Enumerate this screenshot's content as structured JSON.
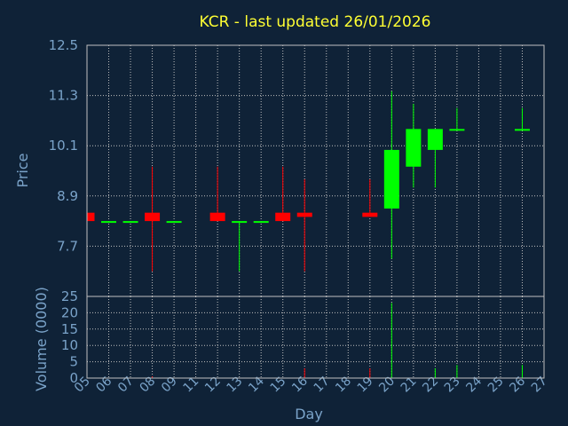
{
  "chart_data": {
    "type": "candlestick",
    "title": "KCR - last updated 26/01/2026",
    "xlabel": "Day",
    "price_ylabel": "Price",
    "volume_ylabel": "Volume (0000)",
    "price_ticks": [
      "12.5",
      "11.3",
      "10.1",
      "8.9",
      "7.7"
    ],
    "price_ylim": [
      6.5,
      12.5
    ],
    "volume_ticks": [
      "25",
      "20",
      "15",
      "10",
      "5",
      "0"
    ],
    "volume_ylim": [
      0,
      25
    ],
    "grid": true,
    "x_labels": [
      "05",
      "06",
      "07",
      "08",
      "09",
      "11",
      "12",
      "13",
      "14",
      "15",
      "16",
      "17",
      "18",
      "19",
      "20",
      "21",
      "22",
      "23",
      "24",
      "25",
      "26",
      "27"
    ],
    "colors": {
      "up": "#00ff00",
      "down": "#ff0000",
      "background": "#0f2237",
      "grid": "#c0c0c0",
      "axis_text": "#7aa3c9",
      "title": "#ffff33"
    },
    "candles": [
      {
        "day": "05",
        "open": 8.5,
        "high": 8.5,
        "low": 8.3,
        "close": 8.3
      },
      {
        "day": "06",
        "open": 8.3,
        "high": 8.3,
        "low": 8.3,
        "close": 8.3
      },
      {
        "day": "07",
        "open": 8.3,
        "high": 8.3,
        "low": 8.3,
        "close": 8.3
      },
      {
        "day": "08",
        "open": 8.5,
        "high": 9.6,
        "low": 7.1,
        "close": 8.3,
        "volume": 0.5
      },
      {
        "day": "09",
        "open": 8.3,
        "high": 8.3,
        "low": 8.3,
        "close": 8.3
      },
      {
        "day": "12",
        "open": 8.5,
        "high": 9.6,
        "low": 8.3,
        "close": 8.3
      },
      {
        "day": "13",
        "open": 8.3,
        "high": 8.3,
        "low": 7.1,
        "close": 8.3
      },
      {
        "day": "14",
        "open": 8.3,
        "high": 8.3,
        "low": 8.3,
        "close": 8.3
      },
      {
        "day": "15",
        "open": 8.5,
        "high": 9.6,
        "low": 8.3,
        "close": 8.3
      },
      {
        "day": "16",
        "open": 8.5,
        "high": 9.3,
        "low": 7.1,
        "close": 8.4,
        "volume": 3
      },
      {
        "day": "19",
        "open": 8.5,
        "high": 9.3,
        "low": 8.4,
        "close": 8.4,
        "volume": 3
      },
      {
        "day": "20",
        "open": 8.6,
        "high": 11.4,
        "low": 7.4,
        "close": 10.0,
        "volume": 23
      },
      {
        "day": "21",
        "open": 9.6,
        "high": 11.1,
        "low": 9.1,
        "close": 10.5
      },
      {
        "day": "22",
        "open": 10.0,
        "high": 10.5,
        "low": 9.1,
        "close": 10.5,
        "volume": 3
      },
      {
        "day": "23",
        "open": 10.5,
        "high": 11.0,
        "low": 10.5,
        "close": 10.5,
        "volume": 4
      },
      {
        "day": "26",
        "open": 10.5,
        "high": 11.0,
        "low": 10.5,
        "close": 10.5,
        "volume": 4
      }
    ]
  }
}
